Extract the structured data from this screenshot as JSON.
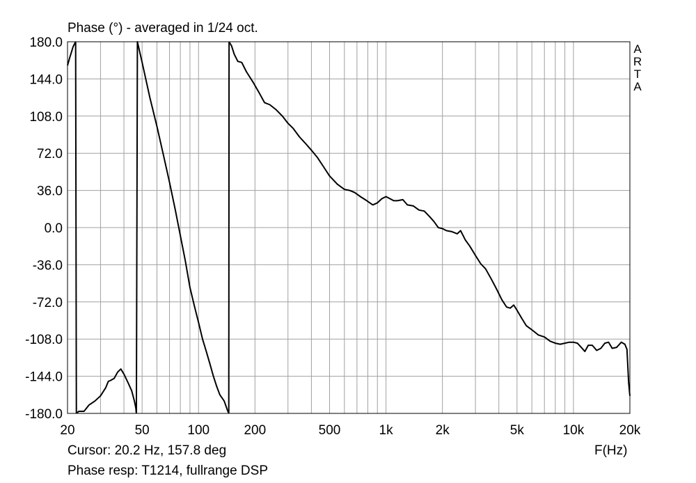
{
  "title": "Phase (°) - averaged in 1/24 oct.",
  "cursor_text": "Cursor: 20.2 Hz, 157.8 deg",
  "caption": "Phase resp: T1214, fullrange DSP",
  "brand": [
    "A",
    "R",
    "T",
    "A"
  ],
  "colors": {
    "background": "#ffffff",
    "grid": "#a0a0a0",
    "curve": "#000000"
  },
  "chart_data": {
    "type": "line",
    "title": "Phase (°) - averaged in 1/24 oct.",
    "xlabel": "F(Hz)",
    "ylabel": "",
    "xscale": "log",
    "xlim": [
      20,
      20000
    ],
    "ylim": [
      -180,
      180
    ],
    "grid": true,
    "x_ticks": [
      {
        "value": 20,
        "label": "20"
      },
      {
        "value": 50,
        "label": "50"
      },
      {
        "value": 100,
        "label": "100"
      },
      {
        "value": 200,
        "label": "200"
      },
      {
        "value": 500,
        "label": "500"
      },
      {
        "value": 1000,
        "label": "1k"
      },
      {
        "value": 2000,
        "label": "2k"
      },
      {
        "value": 5000,
        "label": "5k"
      },
      {
        "value": 10000,
        "label": "10k"
      },
      {
        "value": 20000,
        "label": "20k"
      }
    ],
    "y_ticks": [
      {
        "value": 180,
        "label": "180.0"
      },
      {
        "value": 144,
        "label": "144.0"
      },
      {
        "value": 108,
        "label": "108.0"
      },
      {
        "value": 72,
        "label": "72.0"
      },
      {
        "value": 36,
        "label": "36.0"
      },
      {
        "value": 0,
        "label": "0.0"
      },
      {
        "value": -36,
        "label": "-36.0"
      },
      {
        "value": -72,
        "label": "-72.0"
      },
      {
        "value": -108,
        "label": "-108.0"
      },
      {
        "value": -144,
        "label": "-144.0"
      },
      {
        "value": -180,
        "label": "-180.0"
      }
    ],
    "series": [
      {
        "segments": [
          [
            [
              20,
              157
            ],
            [
              20.5,
              164
            ],
            [
              21,
              170
            ],
            [
              21.4,
              175
            ],
            [
              21.8,
              178
            ],
            [
              22.1,
              180
            ]
          ],
          [
            [
              22.3,
              -180
            ],
            [
              23,
              -178
            ],
            [
              24.5,
              -178
            ],
            [
              26,
              -172
            ],
            [
              28,
              -168
            ],
            [
              30,
              -163
            ],
            [
              32,
              -155
            ],
            [
              33,
              -149
            ],
            [
              34,
              -148
            ],
            [
              35.5,
              -146
            ],
            [
              37,
              -140
            ],
            [
              38.5,
              -137
            ],
            [
              40,
              -142
            ],
            [
              42,
              -150
            ],
            [
              44,
              -158
            ],
            [
              45.5,
              -168
            ],
            [
              46.3,
              -175
            ],
            [
              46.6,
              -180
            ]
          ],
          [
            [
              46.9,
              0
            ],
            [
              47.2,
              180
            ],
            [
              50,
              160
            ],
            [
              55,
              126
            ],
            [
              60,
              98
            ],
            [
              65,
              70
            ],
            [
              70,
              44
            ],
            [
              75,
              18
            ],
            [
              80,
              -8
            ],
            [
              85,
              -32
            ],
            [
              90,
              -58
            ],
            [
              95,
              -76
            ],
            [
              100,
              -92
            ],
            [
              105,
              -108
            ],
            [
              110,
              -120
            ],
            [
              115,
              -132
            ],
            [
              120,
              -144
            ],
            [
              125,
              -154
            ],
            [
              130,
              -162
            ],
            [
              137,
              -168
            ],
            [
              142,
              -176
            ],
            [
              145,
              -180
            ]
          ],
          [
            [
              145.5,
              180
            ],
            [
              150,
              176
            ],
            [
              155,
              168
            ],
            [
              162,
              161
            ],
            [
              170,
              160
            ],
            [
              180,
              151
            ],
            [
              195,
              141
            ],
            [
              210,
              131
            ],
            [
              225,
              121
            ],
            [
              240,
              119
            ],
            [
              260,
              114
            ],
            [
              280,
              108
            ],
            [
              300,
              101
            ],
            [
              320,
              96
            ],
            [
              345,
              88
            ],
            [
              370,
              82
            ],
            [
              400,
              75
            ],
            [
              430,
              68
            ],
            [
              460,
              60
            ],
            [
              500,
              50
            ],
            [
              550,
              42
            ],
            [
              600,
              37
            ],
            [
              640,
              36
            ],
            [
              680,
              34
            ],
            [
              730,
              30
            ],
            [
              790,
              26
            ],
            [
              850,
              22
            ],
            [
              900,
              24
            ],
            [
              950,
              28
            ],
            [
              1000,
              30
            ],
            [
              1050,
              28
            ],
            [
              1100,
              26
            ],
            [
              1150,
              26
            ],
            [
              1230,
              27
            ],
            [
              1300,
              22
            ],
            [
              1400,
              21
            ],
            [
              1500,
              17
            ],
            [
              1600,
              16
            ],
            [
              1700,
              11
            ],
            [
              1800,
              6
            ],
            [
              1900,
              0
            ],
            [
              2000,
              -1
            ],
            [
              2100,
              -3
            ],
            [
              2250,
              -4
            ],
            [
              2400,
              -6
            ],
            [
              2500,
              -3
            ],
            [
              2650,
              -12
            ],
            [
              2800,
              -18
            ],
            [
              3000,
              -27
            ],
            [
              3200,
              -35
            ],
            [
              3400,
              -40
            ],
            [
              3650,
              -50
            ],
            [
              3900,
              -60
            ],
            [
              4150,
              -70
            ],
            [
              4400,
              -77
            ],
            [
              4600,
              -78
            ],
            [
              4800,
              -75
            ],
            [
              5000,
              -80
            ],
            [
              5300,
              -88
            ],
            [
              5600,
              -95
            ],
            [
              6000,
              -99
            ],
            [
              6500,
              -104
            ],
            [
              7000,
              -106
            ],
            [
              7500,
              -110
            ],
            [
              8000,
              -112
            ],
            [
              8500,
              -113
            ],
            [
              9000,
              -112
            ],
            [
              9500,
              -111
            ],
            [
              10000,
              -111
            ],
            [
              10500,
              -112
            ],
            [
              11000,
              -116
            ],
            [
              11500,
              -120
            ],
            [
              12000,
              -114
            ],
            [
              12600,
              -114
            ],
            [
              13300,
              -119
            ],
            [
              14000,
              -117
            ],
            [
              14700,
              -112
            ],
            [
              15400,
              -111
            ],
            [
              16100,
              -117
            ],
            [
              17000,
              -116
            ],
            [
              18000,
              -111
            ],
            [
              18800,
              -113
            ],
            [
              19300,
              -118
            ],
            [
              19700,
              -150
            ],
            [
              20000,
              -163
            ]
          ]
        ]
      }
    ]
  }
}
